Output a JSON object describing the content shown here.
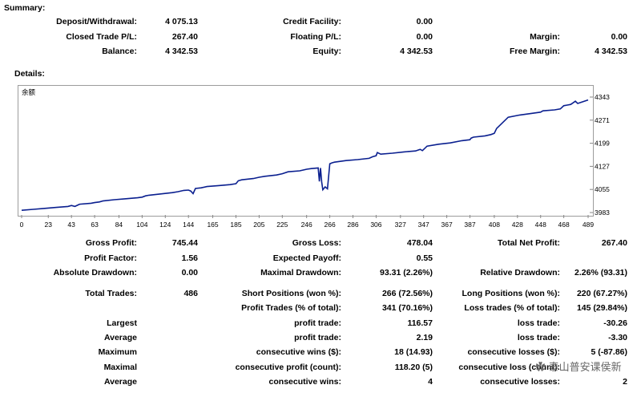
{
  "summary": {
    "title": "Summary:",
    "rows": [
      [
        {
          "label": "Deposit/Withdrawal:",
          "value": "4 075.13"
        },
        {
          "label": "Credit Facility:",
          "value": "0.00"
        },
        {
          "label": "",
          "value": ""
        }
      ],
      [
        {
          "label": "Closed Trade P/L:",
          "value": "267.40"
        },
        {
          "label": "Floating P/L:",
          "value": "0.00"
        },
        {
          "label": "Margin:",
          "value": "0.00"
        }
      ],
      [
        {
          "label": "Balance:",
          "value": "4 342.53"
        },
        {
          "label": "Equity:",
          "value": "4 342.53"
        },
        {
          "label": "Free Margin:",
          "value": "4 342.53"
        }
      ]
    ]
  },
  "details": {
    "title": "Details:"
  },
  "chart_data": {
    "type": "line",
    "legend": "余额",
    "x_ticks": [
      "0",
      "23",
      "43",
      "63",
      "84",
      "104",
      "124",
      "144",
      "165",
      "185",
      "205",
      "225",
      "246",
      "266",
      "286",
      "306",
      "327",
      "347",
      "367",
      "387",
      "408",
      "428",
      "448",
      "468",
      "489"
    ],
    "y_ticks": [
      "3983",
      "4055",
      "4127",
      "4199",
      "4271",
      "4343"
    ],
    "xlim": [
      0,
      489
    ],
    "ylim": [
      3983,
      4343
    ],
    "line_color": "#0a1f8f",
    "series": [
      {
        "x": [
          0,
          10,
          20,
          30,
          40,
          43,
          46,
          50,
          60,
          63,
          67,
          70,
          80,
          90,
          100,
          104,
          107,
          110,
          120,
          130,
          135,
          140,
          144,
          146,
          148,
          150,
          155,
          160,
          170,
          180,
          185,
          187,
          190,
          200,
          205,
          210,
          220,
          225,
          230,
          240,
          246,
          250,
          256,
          257,
          258,
          259,
          260,
          262,
          264,
          266,
          268,
          270,
          280,
          290,
          300,
          303,
          306,
          307,
          310,
          320,
          330,
          340,
          344,
          346,
          350,
          360,
          370,
          380,
          387,
          388,
          390,
          400,
          405,
          408,
          410,
          420,
          430,
          440,
          448,
          450,
          460,
          465,
          468,
          471,
          474,
          478,
          480,
          489
        ],
        "y": [
          3990,
          3993,
          3996,
          3999,
          4002,
          4005,
          4002,
          4009,
          4012,
          4014,
          4016,
          4019,
          4023,
          4026,
          4029,
          4031,
          4035,
          4037,
          4041,
          4045,
          4048,
          4052,
          4053,
          4050,
          4042,
          4058,
          4060,
          4064,
          4067,
          4070,
          4073,
          4082,
          4085,
          4089,
          4093,
          4096,
          4100,
          4104,
          4110,
          4113,
          4118,
          4120,
          4122,
          4080,
          4122,
          4078,
          4054,
          4063,
          4057,
          4135,
          4138,
          4140,
          4145,
          4148,
          4152,
          4157,
          4160,
          4170,
          4165,
          4168,
          4172,
          4175,
          4180,
          4176,
          4190,
          4196,
          4200,
          4207,
          4210,
          4215,
          4218,
          4222,
          4226,
          4230,
          4245,
          4280,
          4287,
          4292,
          4296,
          4300,
          4303,
          4306,
          4316,
          4318,
          4320,
          4330,
          4323,
          4334
        ]
      }
    ]
  },
  "stats": {
    "rows": [
      [
        {
          "label": "Gross Profit:",
          "value": "745.44"
        },
        {
          "label": "Gross Loss:",
          "value": "478.04"
        },
        {
          "label": "Total Net Profit:",
          "value": "267.40"
        }
      ],
      [
        {
          "label": "Profit Factor:",
          "value": "1.56"
        },
        {
          "label": "Expected Payoff:",
          "value": "0.55"
        },
        {
          "label": "",
          "value": ""
        }
      ],
      [
        {
          "label": "Absolute Drawdown:",
          "value": "0.00"
        },
        {
          "label": "Maximal Drawdown:",
          "value": "93.31 (2.26%)"
        },
        {
          "label": "Relative Drawdown:",
          "value": "2.26% (93.31)"
        }
      ],
      [
        {
          "label": "Total Trades:",
          "value": "486"
        },
        {
          "label": "Short Positions (won %):",
          "value": "266 (72.56%)"
        },
        {
          "label": "Long Positions (won %):",
          "value": "220 (67.27%)"
        }
      ],
      [
        {
          "label": "",
          "value": ""
        },
        {
          "label": "Profit Trades (% of total):",
          "value": "341 (70.16%)"
        },
        {
          "label": "Loss trades (% of total):",
          "value": "145 (29.84%)"
        }
      ],
      [
        {
          "label": "Largest",
          "value": ""
        },
        {
          "label": "profit trade:",
          "value": "116.57"
        },
        {
          "label": "loss trade:",
          "value": "-30.26"
        }
      ],
      [
        {
          "label": "Average",
          "value": ""
        },
        {
          "label": "profit trade:",
          "value": "2.19"
        },
        {
          "label": "loss trade:",
          "value": "-3.30"
        }
      ],
      [
        {
          "label": "Maximum",
          "value": ""
        },
        {
          "label": "consecutive wins ($):",
          "value": "18 (14.93)"
        },
        {
          "label": "consecutive losses ($):",
          "value": "5 (-87.86)"
        }
      ],
      [
        {
          "label": "Maximal",
          "value": ""
        },
        {
          "label": "consecutive profit (count):",
          "value": "118.20 (5)"
        },
        {
          "label": "consecutive loss (count):",
          "value": ""
        }
      ],
      [
        {
          "label": "Average",
          "value": ""
        },
        {
          "label": "consecutive wins:",
          "value": "4"
        },
        {
          "label": "consecutive losses:",
          "value": "2"
        }
      ]
    ]
  },
  "watermark": "泰山普安课侯新"
}
